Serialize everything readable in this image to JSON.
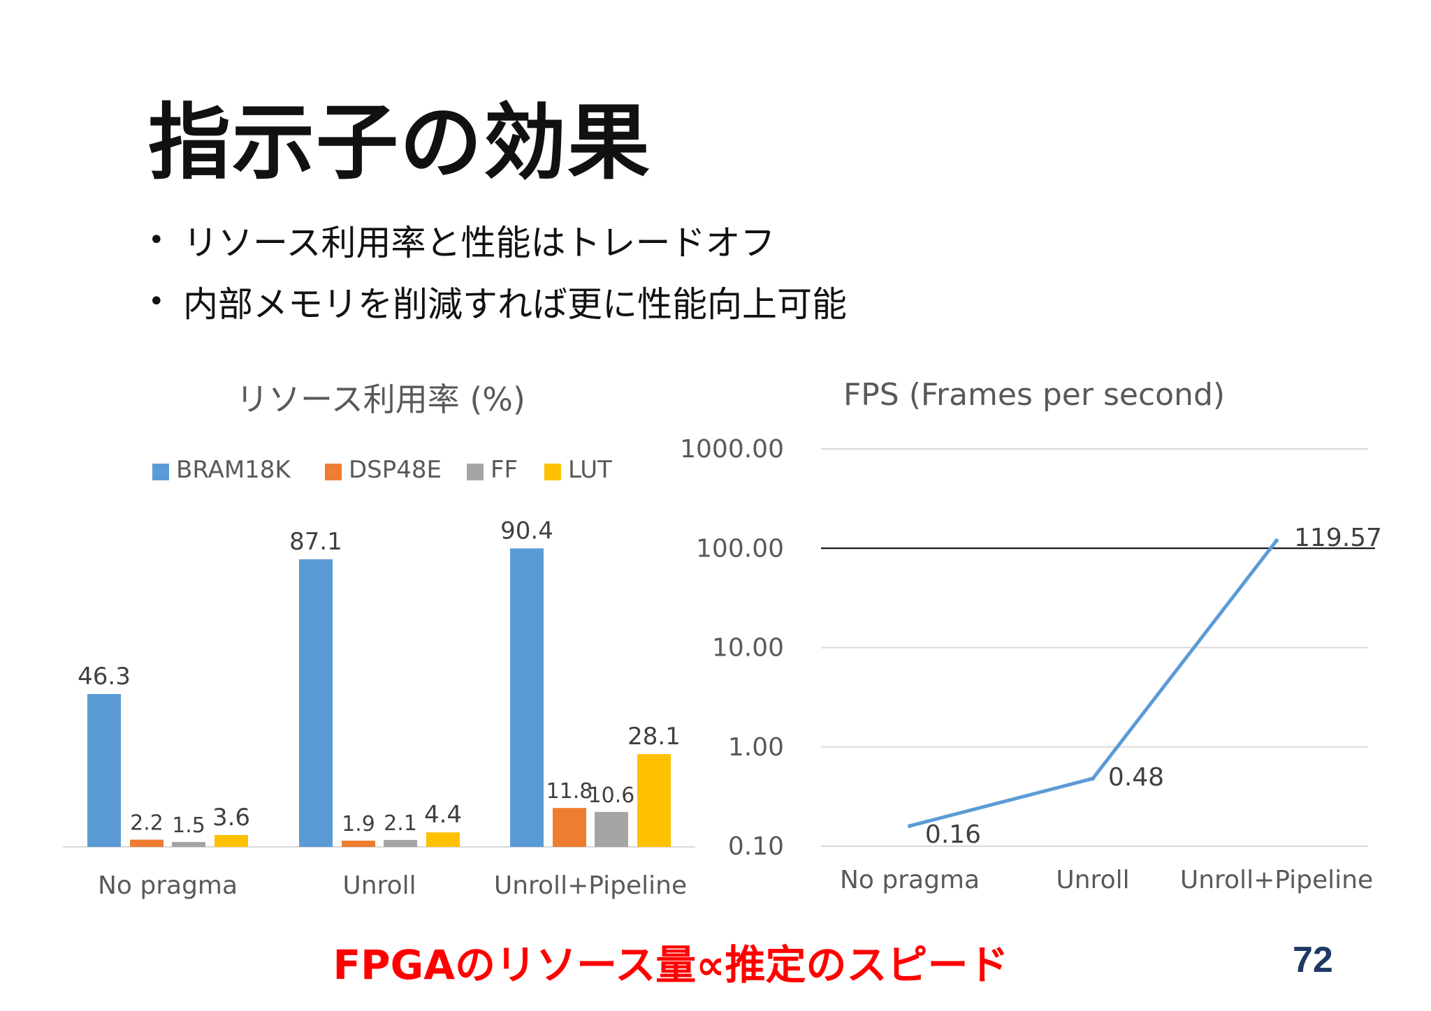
{
  "slide": {
    "title": "指示子の効果",
    "bullets": [
      "リソース利用率と性能はトレードオフ",
      "内部メモリを削減すれば更に性能向上可能"
    ],
    "footer_note": "FPGAのリソース量∝推定のスピード",
    "page_number": "72"
  },
  "colors": {
    "BRAM18K": "#5b9bd5",
    "DSP48E": "#ed7d31",
    "FF": "#a5a5a5",
    "LUT": "#ffc000",
    "line": "#5b9bd5",
    "title": "#000000",
    "footer": "#ff0000",
    "page_number": "#1f3864"
  },
  "chart_data": [
    {
      "type": "bar",
      "title": "リソース利用率 (%)",
      "categories": [
        "No pragma",
        "Unroll",
        "Unroll+Pipeline"
      ],
      "series": [
        {
          "name": "BRAM18K",
          "values": [
            46.3,
            87.1,
            90.4
          ],
          "labels": [
            "46.3",
            "87.1",
            "90.4"
          ]
        },
        {
          "name": "DSP48E",
          "values": [
            2.2,
            1.9,
            11.8
          ],
          "labels": [
            "2.2",
            "1.9",
            "11.8"
          ]
        },
        {
          "name": "FF",
          "values": [
            1.5,
            2.1,
            10.6
          ],
          "labels": [
            "1.5",
            "2.1",
            "10.6"
          ]
        },
        {
          "name": "LUT",
          "values": [
            3.6,
            4.4,
            28.1
          ],
          "labels": [
            "3.6",
            "4.4",
            "28.1"
          ]
        }
      ],
      "ylim": [
        0,
        100
      ],
      "legend": "top",
      "grid": false
    },
    {
      "type": "line",
      "title": "FPS (Frames per second)",
      "categories": [
        "No pragma",
        "Unroll",
        "Unroll+Pipeline"
      ],
      "series": [
        {
          "values": [
            0.16,
            0.48,
            119.57
          ],
          "labels": [
            "0.16",
            "0.48",
            "119.57"
          ]
        }
      ],
      "yscale": "log",
      "ylim": [
        0.1,
        1000
      ],
      "yticks": [
        "0.10",
        "1.00",
        "10.00",
        "100.00",
        "1000.00"
      ],
      "grid": true,
      "reference_line": 100
    }
  ]
}
